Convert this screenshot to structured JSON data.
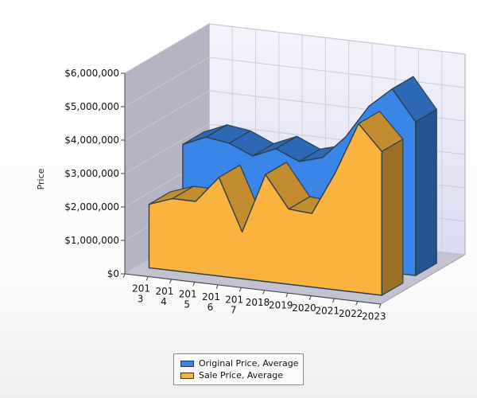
{
  "chart_data": {
    "type": "area",
    "view": "3d",
    "title": "",
    "xlabel": "",
    "ylabel": "Price",
    "categories": [
      "2013",
      "2014",
      "2015",
      "2016",
      "2017",
      "2018",
      "2019",
      "2020",
      "2021",
      "2022",
      "2023"
    ],
    "tick_labels": [
      [
        "201",
        "3"
      ],
      [
        "201",
        "4"
      ],
      [
        "201",
        "5"
      ],
      [
        "201",
        "6"
      ],
      [
        "201",
        "7"
      ],
      [
        "2018"
      ],
      [
        "2019"
      ],
      [
        "2020"
      ],
      [
        "2021"
      ],
      [
        "2022"
      ],
      [
        "2023"
      ]
    ],
    "yticks": [
      "$0",
      "$1,000,000",
      "$2,000,000",
      "$3,000,000",
      "$4,000,000",
      "$5,000,000",
      "$6,000,000"
    ],
    "ylim": [
      0,
      6000000
    ],
    "series": [
      {
        "name": "Original Price, Average",
        "color": "#3a86e8",
        "values": [
          3100000,
          3400000,
          3300000,
          3000000,
          3300000,
          3000000,
          3200000,
          3900000,
          4900000,
          5500000,
          4600000
        ]
      },
      {
        "name": "Sale Price, Average",
        "color": "#fbb33f",
        "values": [
          1900000,
          2150000,
          2150000,
          2950000,
          1400000,
          3200000,
          2250000,
          2200000,
          3500000,
          5050000,
          4300000
        ]
      }
    ],
    "legend_position": "bottom-center"
  }
}
